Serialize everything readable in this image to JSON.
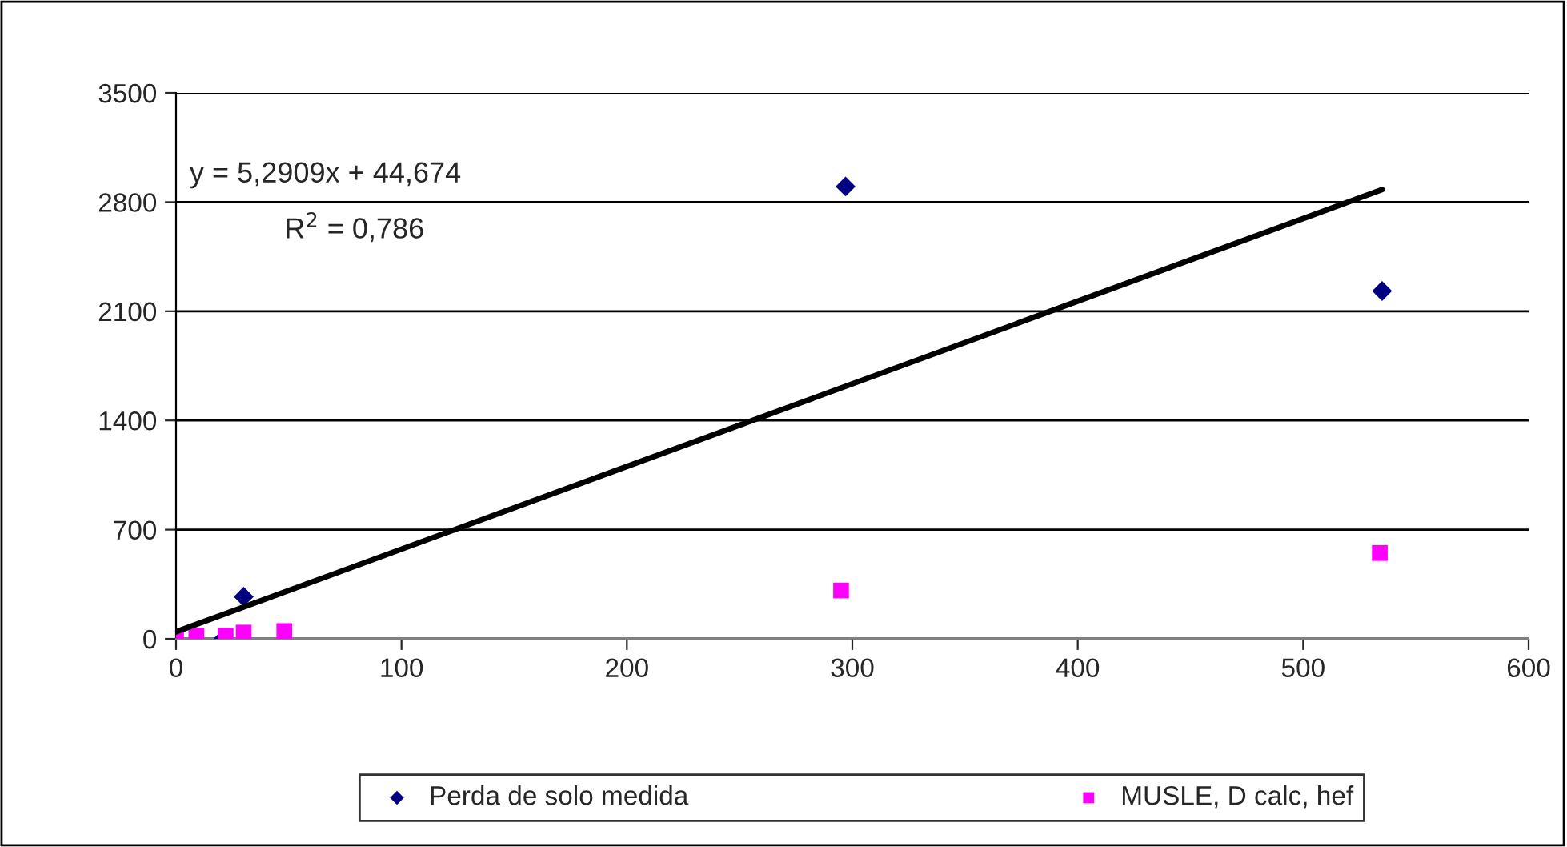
{
  "chart_data": {
    "type": "scatter",
    "series": [
      {
        "name": "Perda de solo medida",
        "color": "#000080",
        "marker": "diamond",
        "x": [
          21,
          30,
          297,
          535
        ],
        "values": [
          0,
          270,
          2900,
          2230
        ]
      },
      {
        "name": "MUSLE, D calc, hef",
        "color": "#ff00ff",
        "marker": "square",
        "x": [
          0,
          9,
          22,
          30,
          48,
          295,
          534
        ],
        "values": [
          0,
          20,
          20,
          40,
          50,
          310,
          550
        ]
      },
      {
        "type": "line",
        "color": "#000000",
        "marker": "none",
        "line_style": "solid",
        "x": [
          0,
          535
        ],
        "values": [
          45,
          2880
        ]
      }
    ],
    "annotations": [
      "y = 5,2909x + 44,674",
      "R$^{2}$ = 0,786"
    ],
    "xlim": [
      0,
      600
    ],
    "xticks": [
      0,
      100,
      200,
      300,
      400,
      500,
      600
    ],
    "ylim": [
      0,
      3500
    ],
    "yticks": [
      0,
      700,
      1400,
      2100,
      2800,
      3500
    ],
    "grid": "y",
    "legend": "bottom"
  }
}
